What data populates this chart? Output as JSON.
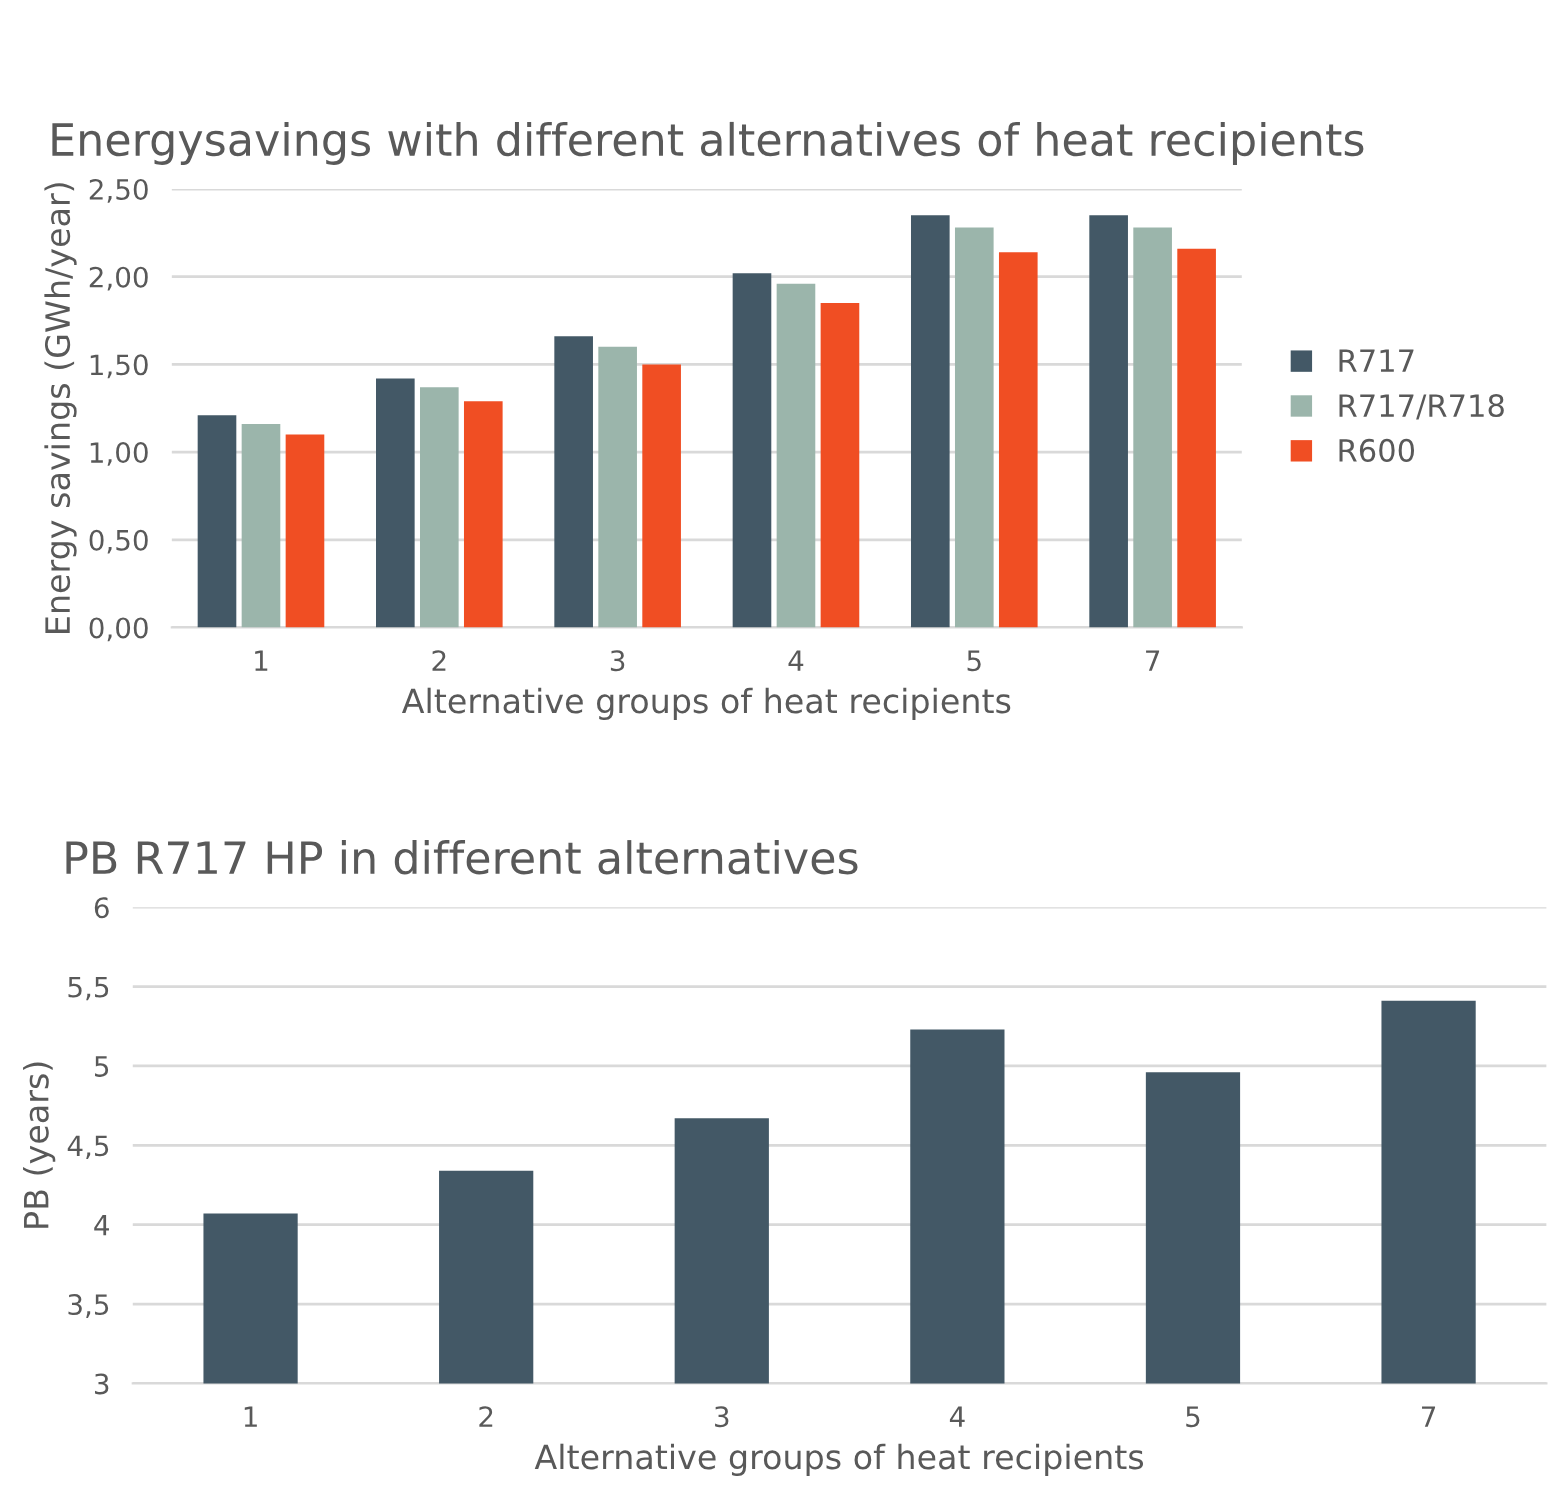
{
  "chart_data": [
    {
      "type": "bar",
      "title": "Energysavings with different alternatives of heat recipients",
      "xlabel": "Alternative groups of heat recipients",
      "ylabel": "Energy savings (GWh/year)",
      "categories": [
        "1",
        "2",
        "3",
        "4",
        "5",
        "7"
      ],
      "series": [
        {
          "name": "R717",
          "color": "#435866",
          "values": [
            1.21,
            1.42,
            1.66,
            2.02,
            2.35,
            2.35
          ]
        },
        {
          "name": "R717/R718",
          "color": "#9bb5ab",
          "values": [
            1.16,
            1.37,
            1.6,
            1.96,
            2.28,
            2.28
          ]
        },
        {
          "name": "R600",
          "color": "#f04e23",
          "values": [
            1.1,
            1.29,
            1.5,
            1.85,
            2.14,
            2.16
          ]
        }
      ],
      "ylim": [
        0,
        2.5
      ],
      "yticks": [
        {
          "value": 0,
          "label": "0,00"
        },
        {
          "value": 0.5,
          "label": "0,50"
        },
        {
          "value": 1,
          "label": "1,00"
        },
        {
          "value": 1.5,
          "label": "1,50"
        },
        {
          "value": 2,
          "label": "2,00"
        },
        {
          "value": 2.5,
          "label": "2,50"
        }
      ],
      "grid": "y",
      "legend": "right"
    },
    {
      "type": "bar",
      "title": "PB R717 HP in different alternatives",
      "xlabel": "Alternative groups of heat recipients",
      "ylabel": "PB (years)",
      "categories": [
        "1",
        "2",
        "3",
        "4",
        "5",
        "7"
      ],
      "series": [
        {
          "color": "#435866",
          "values": [
            4.07,
            4.34,
            4.67,
            5.23,
            4.96,
            5.41
          ]
        }
      ],
      "ylim": [
        3,
        6
      ],
      "yticks": [
        3,
        {
          "value": 3.5,
          "label": "3,5"
        },
        4,
        {
          "value": 4.5,
          "label": "4,5"
        },
        5,
        {
          "value": 5.5,
          "label": "5,5"
        },
        6
      ],
      "grid": "y"
    }
  ]
}
